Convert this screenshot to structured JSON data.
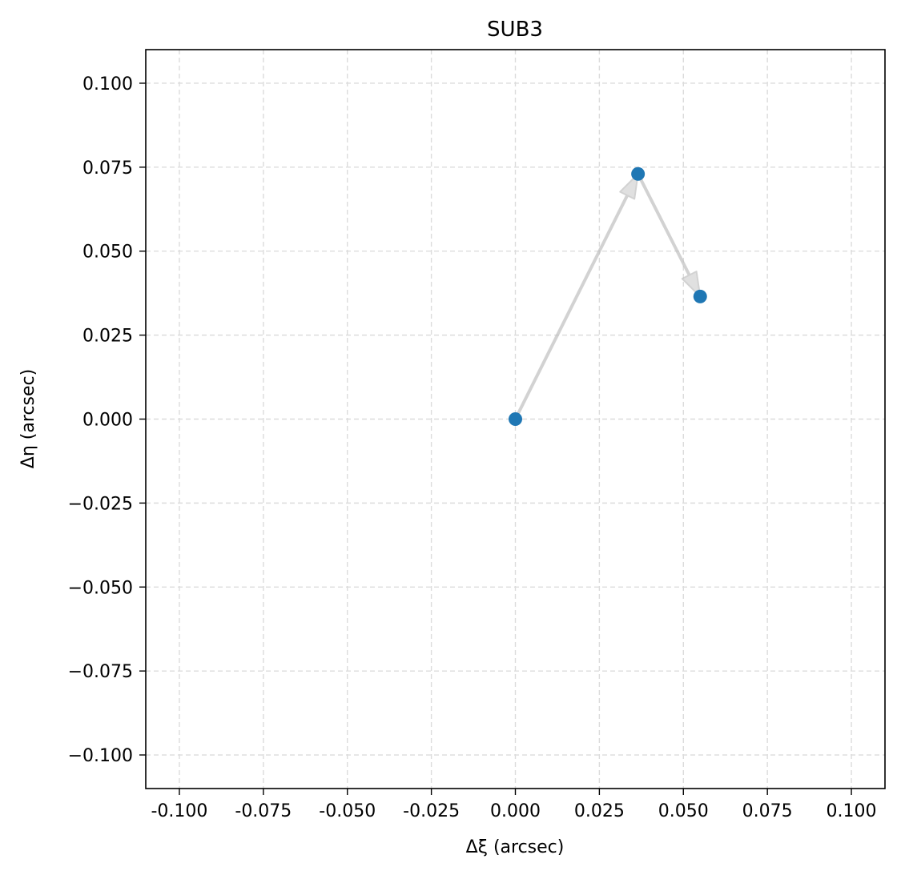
{
  "chart_data": {
    "type": "scatter",
    "title": "SUB3",
    "xlabel": "Δξ (arcsec)",
    "ylabel": "Δη (arcsec)",
    "xlim": [
      -0.11,
      0.11
    ],
    "ylim": [
      -0.11,
      0.11
    ],
    "x_ticks": [
      -0.1,
      -0.075,
      -0.05,
      -0.025,
      0.0,
      0.025,
      0.05,
      0.075,
      0.1
    ],
    "x_tick_labels": [
      "-0.100",
      "-0.075",
      "-0.050",
      "-0.025",
      "0.000",
      "0.025",
      "0.050",
      "0.075",
      "0.100"
    ],
    "y_ticks": [
      0.1,
      0.075,
      0.05,
      0.025,
      0.0,
      -0.025,
      -0.05,
      -0.075,
      -0.1
    ],
    "y_tick_labels": [
      "0.100",
      "0.075",
      "0.050",
      "0.025",
      "0.000",
      "−0.025",
      "−0.050",
      "−0.075",
      "−0.100"
    ],
    "grid": true,
    "grid_style": "dashed",
    "points": [
      {
        "x": 0.0,
        "y": 0.0
      },
      {
        "x": 0.0365,
        "y": 0.073
      },
      {
        "x": 0.055,
        "y": 0.0365
      }
    ],
    "arrows": [
      {
        "from": 0,
        "to": 1
      },
      {
        "from": 1,
        "to": 2
      }
    ],
    "point_color": "#1f77b4",
    "arrow_color": "#bfbfbf"
  }
}
